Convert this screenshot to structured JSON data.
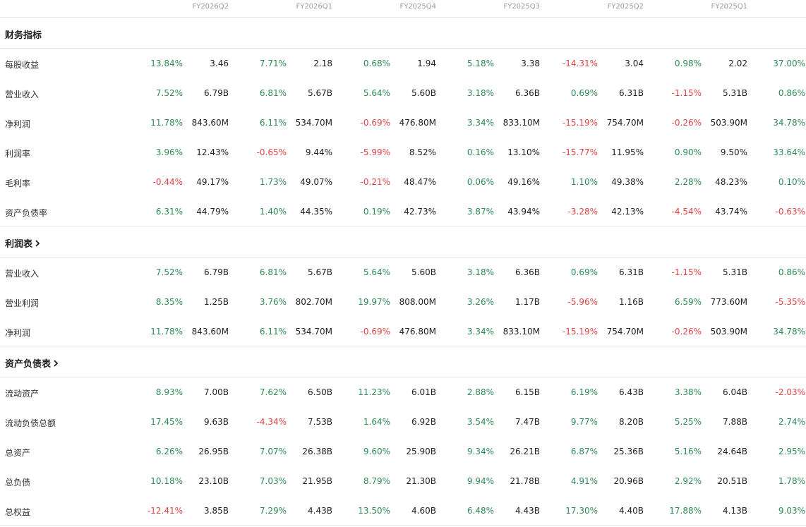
{
  "periods": [
    "FY2026Q2",
    "FY2026Q1",
    "FY2025Q4",
    "FY2025Q3",
    "FY2025Q2",
    "FY2025Q1"
  ],
  "colors": {
    "positive": "#2e8b57",
    "negative": "#e04545"
  },
  "sections": [
    {
      "title": "财务指标",
      "has_chevron": false,
      "rows": [
        {
          "label": "每股收益",
          "cells": [
            [
              "13.84%",
              "3.46"
            ],
            [
              "7.71%",
              "2.18"
            ],
            [
              "0.68%",
              "1.94"
            ],
            [
              "5.18%",
              "3.38"
            ],
            [
              "-14.31%",
              "3.04"
            ],
            [
              "0.98%",
              "2.02"
            ],
            [
              "37.00%",
              ""
            ]
          ]
        },
        {
          "label": "营业收入",
          "cells": [
            [
              "7.52%",
              "6.79B"
            ],
            [
              "6.81%",
              "5.67B"
            ],
            [
              "5.64%",
              "5.60B"
            ],
            [
              "3.18%",
              "6.36B"
            ],
            [
              "0.69%",
              "6.31B"
            ],
            [
              "-1.15%",
              "5.31B"
            ],
            [
              "0.86%",
              ""
            ]
          ]
        },
        {
          "label": "净利润",
          "cells": [
            [
              "11.78%",
              "843.60M"
            ],
            [
              "6.11%",
              "534.70M"
            ],
            [
              "-0.69%",
              "476.80M"
            ],
            [
              "3.34%",
              "833.10M"
            ],
            [
              "-15.19%",
              "754.70M"
            ],
            [
              "-0.26%",
              "503.90M"
            ],
            [
              "34.78%",
              ""
            ]
          ]
        },
        {
          "label": "利润率",
          "cells": [
            [
              "3.96%",
              "12.43%"
            ],
            [
              "-0.65%",
              "9.44%"
            ],
            [
              "-5.99%",
              "8.52%"
            ],
            [
              "0.16%",
              "13.10%"
            ],
            [
              "-15.77%",
              "11.95%"
            ],
            [
              "0.90%",
              "9.50%"
            ],
            [
              "33.64%",
              ""
            ]
          ]
        },
        {
          "label": "毛利率",
          "cells": [
            [
              "-0.44%",
              "49.17%"
            ],
            [
              "1.73%",
              "49.07%"
            ],
            [
              "-0.21%",
              "48.47%"
            ],
            [
              "0.06%",
              "49.16%"
            ],
            [
              "1.10%",
              "49.38%"
            ],
            [
              "2.28%",
              "48.23%"
            ],
            [
              "0.10%",
              ""
            ]
          ]
        },
        {
          "label": "资产负债率",
          "cells": [
            [
              "6.31%",
              "44.79%"
            ],
            [
              "1.40%",
              "44.35%"
            ],
            [
              "0.19%",
              "42.73%"
            ],
            [
              "3.87%",
              "43.94%"
            ],
            [
              "-3.28%",
              "42.13%"
            ],
            [
              "-4.54%",
              "43.74%"
            ],
            [
              "-0.63%",
              ""
            ]
          ]
        }
      ]
    },
    {
      "title": "利润表",
      "has_chevron": true,
      "rows": [
        {
          "label": "营业收入",
          "cells": [
            [
              "7.52%",
              "6.79B"
            ],
            [
              "6.81%",
              "5.67B"
            ],
            [
              "5.64%",
              "5.60B"
            ],
            [
              "3.18%",
              "6.36B"
            ],
            [
              "0.69%",
              "6.31B"
            ],
            [
              "-1.15%",
              "5.31B"
            ],
            [
              "0.86%",
              ""
            ]
          ]
        },
        {
          "label": "营业利润",
          "cells": [
            [
              "8.35%",
              "1.25B"
            ],
            [
              "3.76%",
              "802.70M"
            ],
            [
              "19.97%",
              "808.00M"
            ],
            [
              "3.26%",
              "1.17B"
            ],
            [
              "-5.96%",
              "1.16B"
            ],
            [
              "6.59%",
              "773.60M"
            ],
            [
              "-5.35%",
              ""
            ]
          ]
        },
        {
          "label": "净利润",
          "cells": [
            [
              "11.78%",
              "843.60M"
            ],
            [
              "6.11%",
              "534.70M"
            ],
            [
              "-0.69%",
              "476.80M"
            ],
            [
              "3.34%",
              "833.10M"
            ],
            [
              "-15.19%",
              "754.70M"
            ],
            [
              "-0.26%",
              "503.90M"
            ],
            [
              "34.78%",
              ""
            ]
          ]
        }
      ]
    },
    {
      "title": "资产负债表",
      "has_chevron": true,
      "rows": [
        {
          "label": "流动资产",
          "cells": [
            [
              "8.93%",
              "7.00B"
            ],
            [
              "7.62%",
              "6.50B"
            ],
            [
              "11.23%",
              "6.01B"
            ],
            [
              "2.88%",
              "6.15B"
            ],
            [
              "6.19%",
              "6.43B"
            ],
            [
              "3.38%",
              "6.04B"
            ],
            [
              "-2.03%",
              ""
            ]
          ]
        },
        {
          "label": "流动负债总额",
          "cells": [
            [
              "17.45%",
              "9.63B"
            ],
            [
              "-4.34%",
              "7.53B"
            ],
            [
              "1.64%",
              "6.92B"
            ],
            [
              "3.54%",
              "7.47B"
            ],
            [
              "9.77%",
              "8.20B"
            ],
            [
              "5.25%",
              "7.88B"
            ],
            [
              "2.74%",
              ""
            ]
          ]
        },
        {
          "label": "总资产",
          "cells": [
            [
              "6.26%",
              "26.95B"
            ],
            [
              "7.07%",
              "26.38B"
            ],
            [
              "9.60%",
              "25.90B"
            ],
            [
              "9.34%",
              "26.21B"
            ],
            [
              "6.87%",
              "25.36B"
            ],
            [
              "5.16%",
              "24.64B"
            ],
            [
              "2.95%",
              ""
            ]
          ]
        },
        {
          "label": "总负债",
          "cells": [
            [
              "10.18%",
              "23.10B"
            ],
            [
              "7.03%",
              "21.95B"
            ],
            [
              "8.79%",
              "21.30B"
            ],
            [
              "9.94%",
              "21.78B"
            ],
            [
              "4.91%",
              "20.96B"
            ],
            [
              "2.92%",
              "20.51B"
            ],
            [
              "1.78%",
              ""
            ]
          ]
        },
        {
          "label": "总权益",
          "cells": [
            [
              "-12.41%",
              "3.85B"
            ],
            [
              "7.29%",
              "4.43B"
            ],
            [
              "13.50%",
              "4.60B"
            ],
            [
              "6.48%",
              "4.43B"
            ],
            [
              "17.30%",
              "4.40B"
            ],
            [
              "17.88%",
              "4.13B"
            ],
            [
              "9.03%",
              ""
            ]
          ]
        }
      ]
    }
  ]
}
